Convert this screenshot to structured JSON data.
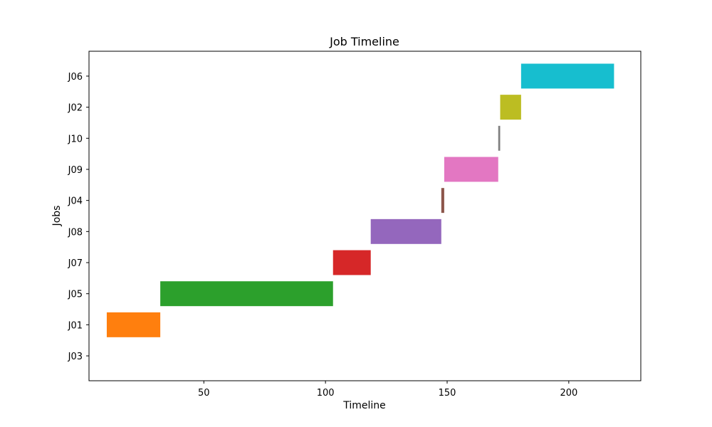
{
  "chart_data": {
    "type": "gantt",
    "title": "Job Timeline",
    "xlabel": "Timeline",
    "ylabel": "Jobs",
    "xlim": [
      2.8,
      229.6
    ],
    "xticks": [
      50,
      100,
      150,
      200
    ],
    "categories": [
      "J03",
      "J01",
      "J05",
      "J07",
      "J08",
      "J04",
      "J09",
      "J10",
      "J02",
      "J06"
    ],
    "tasks": [
      {
        "job": "J03",
        "start": 0,
        "duration": 0,
        "color": "#1f77b4"
      },
      {
        "job": "J01",
        "start": 10.1,
        "duration": 22.0,
        "color": "#ff7f0e"
      },
      {
        "job": "J05",
        "start": 32.1,
        "duration": 71.0,
        "color": "#2ca02c"
      },
      {
        "job": "J07",
        "start": 103.1,
        "duration": 15.5,
        "color": "#d62728"
      },
      {
        "job": "J08",
        "start": 118.6,
        "duration": 29.0,
        "color": "#9467bd"
      },
      {
        "job": "J04",
        "start": 147.6,
        "duration": 1.2,
        "color": "#8c564b"
      },
      {
        "job": "J09",
        "start": 148.8,
        "duration": 22.2,
        "color": "#e377c2"
      },
      {
        "job": "J10",
        "start": 171.0,
        "duration": 0.8,
        "color": "#7f7f7f"
      },
      {
        "job": "J02",
        "start": 171.8,
        "duration": 8.6,
        "color": "#bcbd22"
      },
      {
        "job": "J06",
        "start": 180.4,
        "duration": 38.2,
        "color": "#17becf"
      }
    ],
    "grid": false,
    "legend": "none"
  }
}
